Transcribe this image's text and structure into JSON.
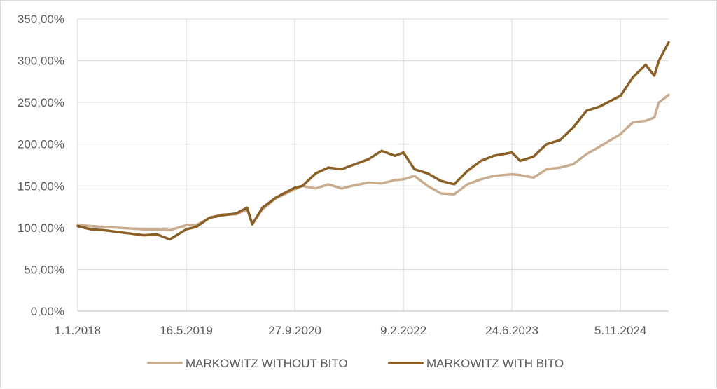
{
  "chart_data": {
    "type": "line",
    "title": "",
    "xlabel": "",
    "ylabel": "",
    "ylim": [
      0,
      350
    ],
    "y_ticks": [
      0,
      50,
      100,
      150,
      200,
      250,
      300,
      350
    ],
    "y_tick_labels": [
      "0,00%",
      "50,00%",
      "100,00%",
      "150,00%",
      "200,00%",
      "250,00%",
      "300,00%",
      "350,00%"
    ],
    "x_tick_labels": [
      "1.1.2018",
      "16.5.2019",
      "27.9.2020",
      "9.2.2022",
      "24.6.2023",
      "5.11.2024"
    ],
    "x_ticks": [
      "2018-01-01",
      "2019-05-16",
      "2020-09-27",
      "2022-02-09",
      "2023-06-24",
      "2024-11-05"
    ],
    "xlim": [
      "2018-01-01",
      "2025-06-15"
    ],
    "grid": "vertical and horizontal",
    "legend_position": "bottom",
    "x": [
      "2018-01-01",
      "2018-03-01",
      "2018-05-01",
      "2018-07-01",
      "2018-09-01",
      "2018-11-01",
      "2019-01-01",
      "2019-03-01",
      "2019-05-16",
      "2019-07-01",
      "2019-09-01",
      "2019-11-01",
      "2020-01-01",
      "2020-02-20",
      "2020-03-15",
      "2020-05-01",
      "2020-07-01",
      "2020-09-27",
      "2020-11-01",
      "2021-01-01",
      "2021-03-01",
      "2021-05-01",
      "2021-07-01",
      "2021-09-01",
      "2021-11-01",
      "2022-01-01",
      "2022-02-09",
      "2022-04-01",
      "2022-06-01",
      "2022-08-01",
      "2022-10-01",
      "2022-12-01",
      "2023-02-01",
      "2023-04-01",
      "2023-06-24",
      "2023-08-01",
      "2023-10-01",
      "2023-12-01",
      "2024-02-01",
      "2024-04-01",
      "2024-06-01",
      "2024-08-01",
      "2024-11-05",
      "2025-01-01",
      "2025-03-01",
      "2025-04-10",
      "2025-05-01",
      "2025-06-15"
    ],
    "series": [
      {
        "name": "MARKOWITZ WITHOUT BITO",
        "color": "#c9ad8e",
        "values": [
          103,
          102,
          101,
          100,
          99,
          98,
          98,
          97,
          103,
          103,
          112,
          116,
          116,
          122,
          105,
          122,
          135,
          146,
          150,
          147,
          152,
          147,
          151,
          154,
          153,
          157,
          158,
          162,
          150,
          141,
          140,
          152,
          158,
          162,
          164,
          163,
          160,
          170,
          172,
          176,
          188,
          197,
          212,
          226,
          228,
          232,
          250,
          259
        ]
      },
      {
        "name": "MARKOWITZ WITH BITO",
        "color": "#8a6027",
        "values": [
          102,
          98,
          97,
          95,
          93,
          91,
          92,
          86,
          98,
          101,
          112,
          115,
          117,
          124,
          104,
          124,
          136,
          148,
          150,
          165,
          172,
          170,
          176,
          182,
          192,
          186,
          190,
          170,
          165,
          156,
          152,
          168,
          180,
          186,
          190,
          180,
          185,
          200,
          205,
          220,
          240,
          245,
          258,
          280,
          295,
          282,
          300,
          322
        ]
      }
    ]
  }
}
